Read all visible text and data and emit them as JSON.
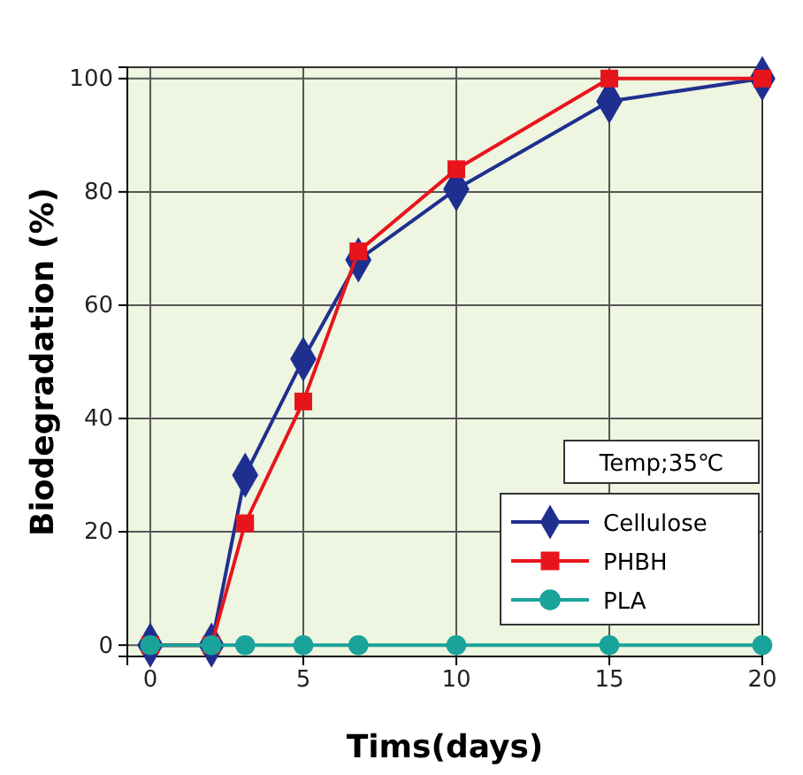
{
  "chart_data": {
    "type": "line",
    "xlabel": "Tims(days)",
    "ylabel": "Biodegradation (%)",
    "legend_title": "Temp;35℃",
    "xlim": [
      -0.75,
      20
    ],
    "ylim": [
      -2,
      102
    ],
    "xticks": [
      0,
      5,
      10,
      15,
      20
    ],
    "yticks": [
      0,
      20,
      40,
      60,
      80,
      100
    ],
    "grid": true,
    "legend": "bottom right",
    "series": [
      {
        "name": "Cellulose",
        "color": "#1f2f8f",
        "marker": "diamond",
        "x": [
          0,
          2,
          3.1,
          5,
          6.8,
          10,
          15,
          20
        ],
        "values": [
          0,
          0,
          30,
          50.5,
          68,
          80.5,
          96,
          100
        ]
      },
      {
        "name": "PHBH",
        "color": "#e8141c",
        "marker": "square",
        "x": [
          0,
          2,
          3.1,
          5,
          6.8,
          10,
          15,
          20
        ],
        "values": [
          0,
          0,
          21.5,
          43,
          69.5,
          84,
          100,
          100
        ]
      },
      {
        "name": "PLA",
        "color": "#1aa39a",
        "marker": "circle",
        "x": [
          0,
          2,
          3.1,
          5,
          6.8,
          10,
          15,
          20
        ],
        "values": [
          0,
          0,
          0,
          0,
          0,
          0,
          0,
          0
        ]
      }
    ]
  }
}
